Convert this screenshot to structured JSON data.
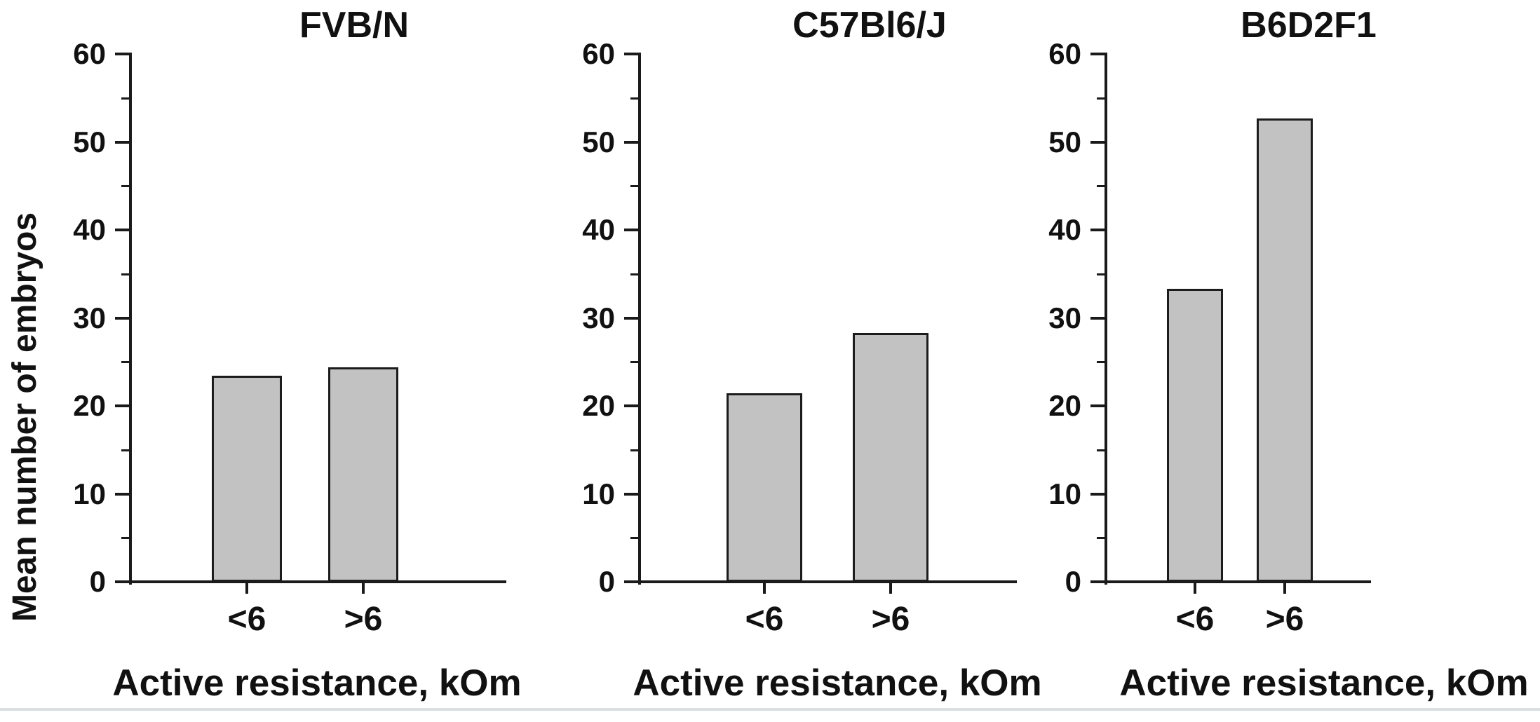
{
  "figure": {
    "y_axis_label": "Mean number of embryos",
    "x_axis_label": "Active resistance, kOm",
    "y_tick_labels": [
      "0",
      "10",
      "20",
      "30",
      "40",
      "50",
      "60"
    ],
    "y_tick_values": [
      0,
      10,
      20,
      30,
      40,
      50,
      60
    ],
    "y_minor_tick_values": [
      5,
      15,
      25,
      35,
      45,
      55
    ],
    "categories": [
      "<6",
      ">6"
    ],
    "bar_fill_color": "#c2c2c2",
    "bar_border_color": "#1c1c1c",
    "axis_color": "#1a1a1a",
    "text_color": "#111111",
    "background_color": "#ffffff"
  },
  "chart_data": [
    {
      "type": "bar",
      "title": "FVB/N",
      "categories": [
        "<6",
        ">6"
      ],
      "values": [
        23.4,
        24.4
      ],
      "xlabel": "Active resistance, kOm",
      "ylabel": "Mean number of embryos",
      "ylim": [
        0,
        60
      ],
      "grid": false,
      "legend": "none"
    },
    {
      "type": "bar",
      "title": "C57Bl6/J",
      "categories": [
        "<6",
        ">6"
      ],
      "values": [
        21.4,
        28.3
      ],
      "xlabel": "Active resistance, kOm",
      "ylabel": "",
      "ylim": [
        0,
        60
      ],
      "grid": false,
      "legend": "none"
    },
    {
      "type": "bar",
      "title": "B6D2F1",
      "categories": [
        "<6",
        ">6"
      ],
      "values": [
        33.3,
        52.7
      ],
      "xlabel": "Active resistance, kOm",
      "ylabel": "",
      "ylim": [
        0,
        60
      ],
      "grid": false,
      "legend": "none"
    }
  ]
}
